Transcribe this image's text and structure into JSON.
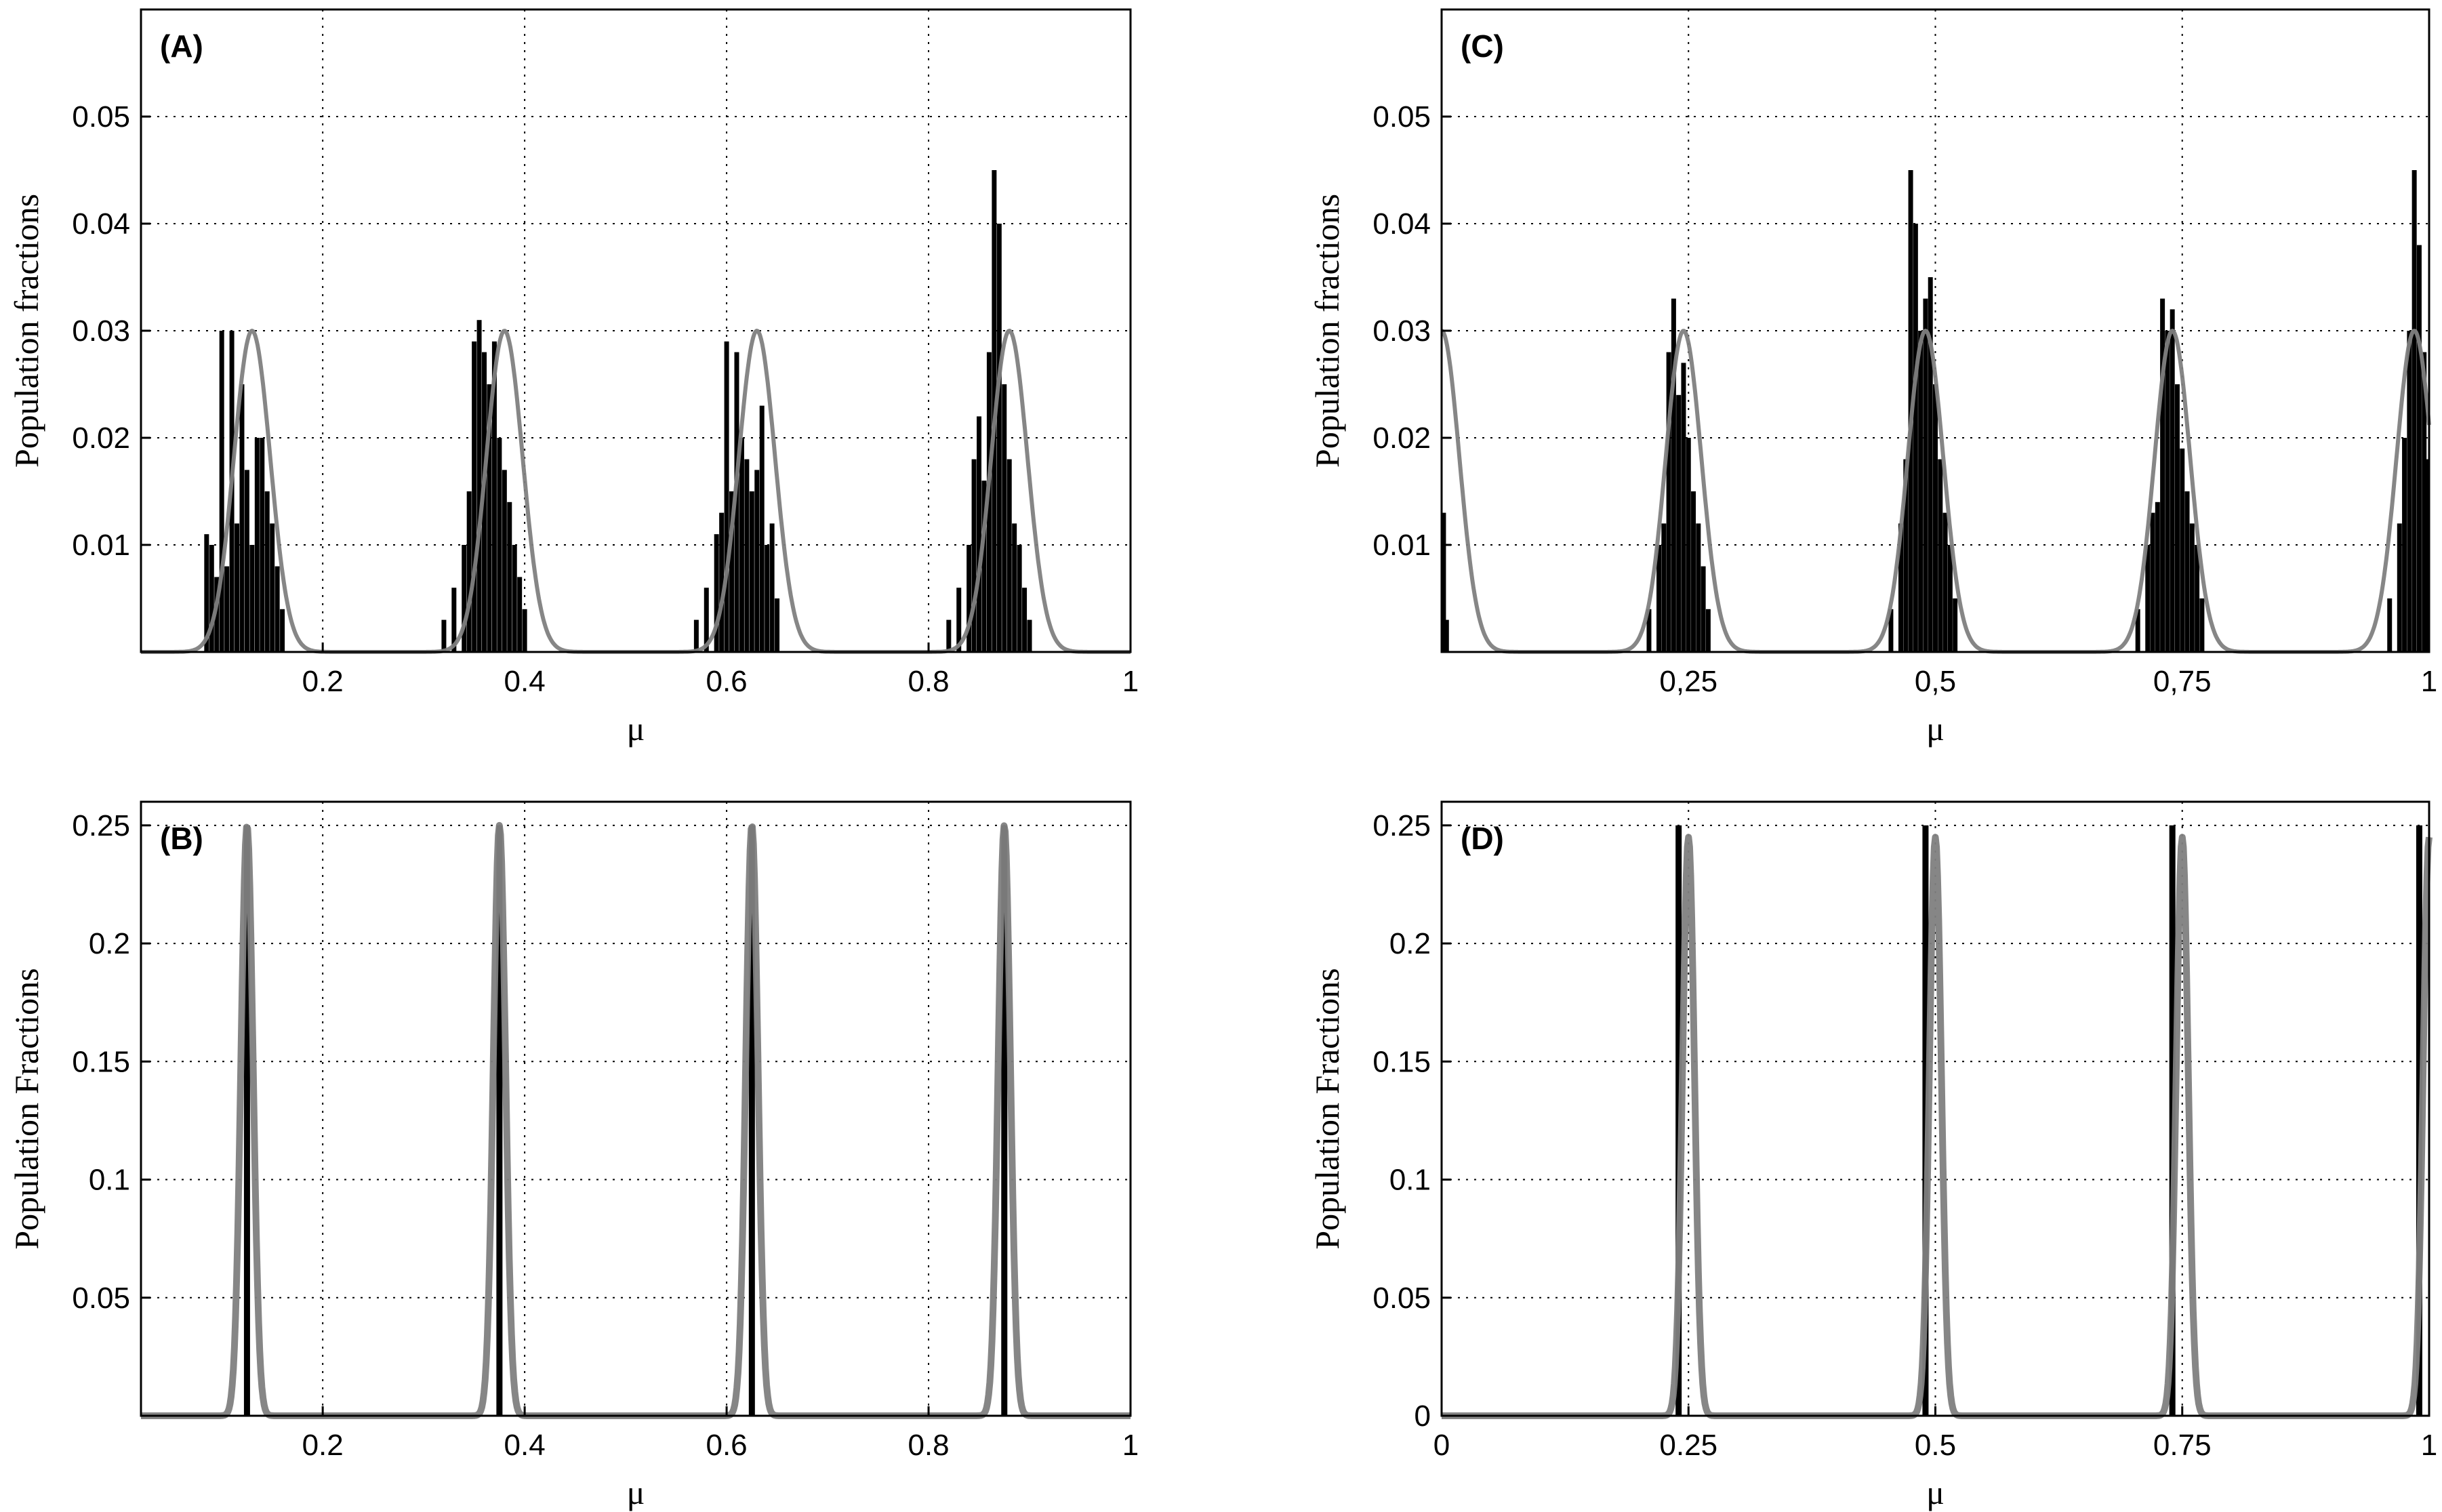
{
  "chart_data": [
    {
      "panel": "(A)",
      "type": "bar",
      "xlabel": "μ",
      "ylabel": "Population fractions",
      "xlim": [
        0.02,
        1.0
      ],
      "ylim": [
        0,
        0.06
      ],
      "xticks": [
        0.2,
        0.4,
        0.6,
        0.8,
        1.0
      ],
      "xtick_labels": [
        "0.2",
        "0.4",
        "0.6",
        "0.8",
        "1"
      ],
      "yticks": [
        0.01,
        0.02,
        0.03,
        0.04,
        0.05
      ],
      "ytick_labels": [
        "0.01",
        "0.02",
        "0.03",
        "0.04",
        "0.05"
      ],
      "grid": true,
      "series": [
        {
          "kind": "bar",
          "color": "#000000",
          "x": [
            0.085,
            0.09,
            0.095,
            0.1,
            0.105,
            0.11,
            0.115,
            0.12,
            0.125,
            0.13,
            0.135,
            0.14,
            0.145,
            0.15,
            0.155,
            0.16,
            0.32,
            0.33,
            0.34,
            0.345,
            0.35,
            0.355,
            0.36,
            0.365,
            0.37,
            0.375,
            0.38,
            0.385,
            0.39,
            0.395,
            0.4,
            0.57,
            0.58,
            0.59,
            0.595,
            0.6,
            0.605,
            0.61,
            0.615,
            0.62,
            0.625,
            0.63,
            0.635,
            0.64,
            0.645,
            0.65,
            0.82,
            0.83,
            0.84,
            0.845,
            0.85,
            0.855,
            0.86,
            0.865,
            0.87,
            0.875,
            0.88,
            0.885,
            0.89,
            0.895,
            0.9
          ],
          "values": [
            0.011,
            0.01,
            0.007,
            0.03,
            0.008,
            0.03,
            0.012,
            0.025,
            0.017,
            0.01,
            0.02,
            0.02,
            0.015,
            0.012,
            0.008,
            0.004,
            0.003,
            0.006,
            0.01,
            0.015,
            0.029,
            0.031,
            0.028,
            0.025,
            0.029,
            0.02,
            0.017,
            0.014,
            0.01,
            0.007,
            0.004,
            0.003,
            0.006,
            0.011,
            0.013,
            0.029,
            0.015,
            0.028,
            0.02,
            0.018,
            0.015,
            0.017,
            0.023,
            0.01,
            0.012,
            0.005,
            0.003,
            0.006,
            0.01,
            0.018,
            0.022,
            0.016,
            0.028,
            0.045,
            0.04,
            0.025,
            0.018,
            0.012,
            0.01,
            0.006,
            0.003
          ]
        },
        {
          "kind": "line",
          "color": "#808080",
          "peaks": [
            0.13,
            0.38,
            0.63,
            0.88
          ],
          "peak_value": 0.03
        }
      ]
    },
    {
      "panel": "(B)",
      "type": "bar",
      "xlabel": "μ",
      "ylabel": "Population Fractions",
      "xlim": [
        0.02,
        1.0
      ],
      "ylim": [
        0,
        0.26
      ],
      "xticks": [
        0.2,
        0.4,
        0.6,
        0.8,
        1.0
      ],
      "xtick_labels": [
        "0.2",
        "0.4",
        "0.6",
        "0.8",
        "1"
      ],
      "yticks": [
        0.05,
        0.1,
        0.15,
        0.2,
        0.25
      ],
      "ytick_labels": [
        "0.05",
        "0.1",
        "0.15",
        "0.2",
        "0.25"
      ],
      "grid": true,
      "series": [
        {
          "kind": "bar",
          "color": "#000000",
          "x": [
            0.125,
            0.375,
            0.625,
            0.875
          ],
          "values": [
            0.25,
            0.25,
            0.25,
            0.25
          ]
        },
        {
          "kind": "line",
          "color": "#808080",
          "peaks": [
            0.125,
            0.375,
            0.625,
            0.875
          ],
          "peak_value": 0.25
        }
      ]
    },
    {
      "panel": "(C)",
      "type": "bar",
      "xlabel": "μ",
      "ylabel": "Population fractions",
      "xlim": [
        0.0,
        1.0
      ],
      "ylim": [
        0,
        0.06
      ],
      "xticks": [
        0.25,
        0.5,
        0.75,
        1.0
      ],
      "xtick_labels": [
        "0,25",
        "0,5",
        "0,75",
        "1"
      ],
      "yticks": [
        0.01,
        0.02,
        0.03,
        0.04,
        0.05
      ],
      "ytick_labels": [
        "0.01",
        "0.02",
        "0.03",
        "0.04",
        "0.05"
      ],
      "grid": true,
      "series": [
        {
          "kind": "bar",
          "color": "#000000",
          "x": [
            0.002,
            0.005,
            0.21,
            0.22,
            0.225,
            0.23,
            0.235,
            0.24,
            0.245,
            0.25,
            0.255,
            0.26,
            0.265,
            0.27,
            0.455,
            0.465,
            0.47,
            0.475,
            0.48,
            0.485,
            0.49,
            0.495,
            0.5,
            0.505,
            0.51,
            0.515,
            0.52,
            0.705,
            0.715,
            0.72,
            0.725,
            0.73,
            0.735,
            0.74,
            0.745,
            0.75,
            0.755,
            0.76,
            0.765,
            0.77,
            0.96,
            0.97,
            0.975,
            0.98,
            0.985,
            0.99,
            0.995,
            0.998
          ],
          "values": [
            0.013,
            0.003,
            0.004,
            0.01,
            0.012,
            0.028,
            0.033,
            0.024,
            0.027,
            0.02,
            0.015,
            0.012,
            0.008,
            0.004,
            0.004,
            0.012,
            0.018,
            0.045,
            0.04,
            0.03,
            0.033,
            0.035,
            0.025,
            0.018,
            0.013,
            0.01,
            0.005,
            0.004,
            0.01,
            0.013,
            0.014,
            0.033,
            0.03,
            0.032,
            0.025,
            0.019,
            0.015,
            0.012,
            0.01,
            0.005,
            0.005,
            0.012,
            0.02,
            0.03,
            0.045,
            0.038,
            0.028,
            0.018
          ]
        },
        {
          "kind": "line",
          "color": "#808080",
          "peaks": [
            0.0,
            0.245,
            0.49,
            0.74,
            0.985
          ],
          "peak_value": 0.03
        }
      ]
    },
    {
      "panel": "(D)",
      "type": "bar",
      "xlabel": "μ",
      "ylabel": "Population Fractions",
      "xlim": [
        0.0,
        1.0
      ],
      "ylim": [
        0,
        0.26
      ],
      "xticks": [
        0.0,
        0.25,
        0.5,
        0.75,
        1.0
      ],
      "xtick_labels": [
        "0",
        "0.25",
        "0.5",
        "0.75",
        "1"
      ],
      "yticks": [
        0.0,
        0.05,
        0.1,
        0.15,
        0.2,
        0.25
      ],
      "ytick_labels": [
        "0",
        "0.05",
        "0.1",
        "0.15",
        "0.2",
        "0.25"
      ],
      "grid": true,
      "series": [
        {
          "kind": "bar",
          "color": "#000000",
          "x": [
            0.24,
            0.49,
            0.74,
            0.99
          ],
          "values": [
            0.25,
            0.25,
            0.25,
            0.25
          ]
        },
        {
          "kind": "line",
          "color": "#808080",
          "peaks": [
            0.25,
            0.5,
            0.75,
            1.0
          ],
          "peak_value": 0.245
        }
      ]
    }
  ]
}
